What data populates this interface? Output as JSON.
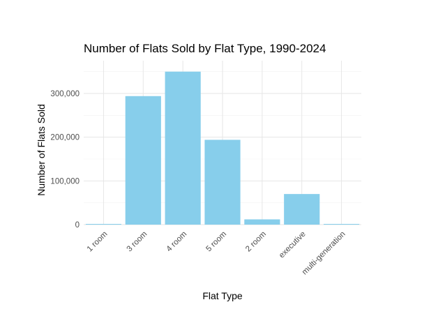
{
  "chart_data": {
    "type": "bar",
    "title": "Number of Flats Sold by Flat Type, 1990-2024",
    "xlabel": "Flat Type",
    "ylabel": "Number of Flats Sold",
    "categories": [
      "1 room",
      "3 room",
      "4 room",
      "5 room",
      "2 room",
      "executive",
      "multi-generation"
    ],
    "values": [
      1500,
      294000,
      350000,
      194000,
      12000,
      70000,
      1000
    ],
    "ylim": [
      0,
      375000
    ],
    "y_ticks": [
      0,
      100000,
      200000,
      300000
    ],
    "y_tick_labels": [
      "0",
      "100,000",
      "200,000",
      "300,000"
    ],
    "grid": true,
    "bar_color": "#87CEEB"
  }
}
